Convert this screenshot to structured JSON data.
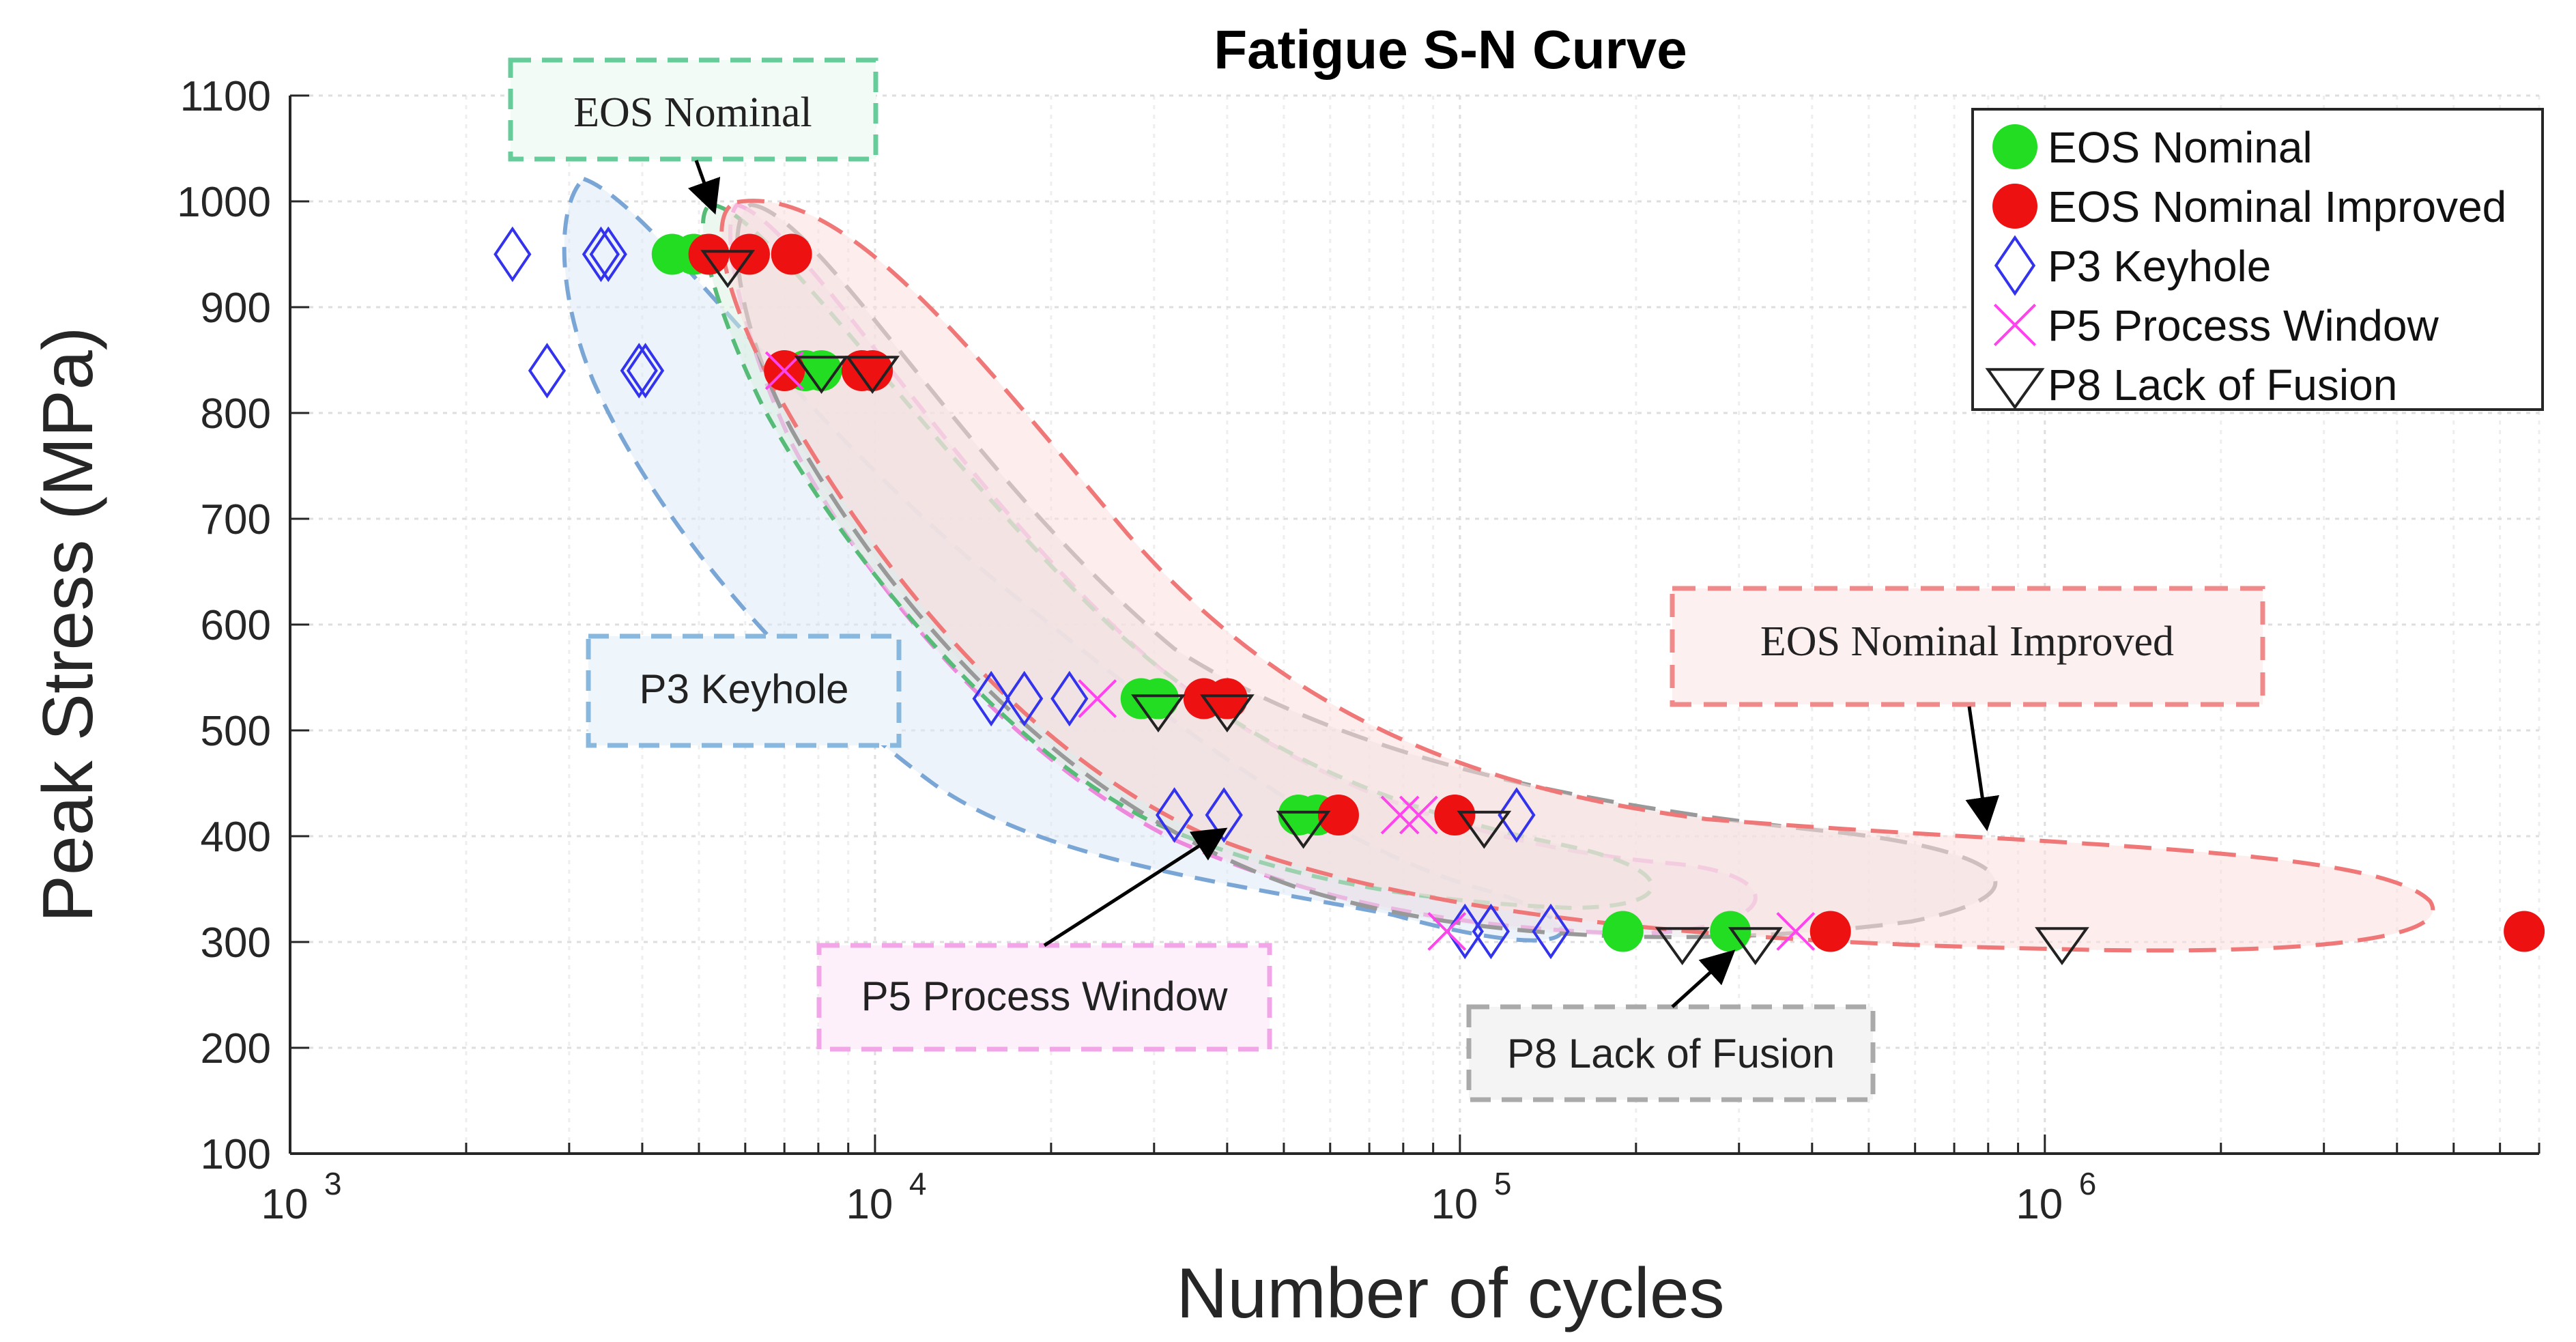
{
  "chart_data": {
    "type": "scatter",
    "title": "Fatigue S-N Curve",
    "xlabel": "Number of cycles",
    "ylabel": "Peak Stress (MPa)",
    "x_scale": "log",
    "xlim": [
      1000,
      7000000
    ],
    "ylim": [
      100,
      1100
    ],
    "x_ticks": [
      {
        "value": 1000,
        "base": "10",
        "exp": "3"
      },
      {
        "value": 10000,
        "base": "10",
        "exp": "4"
      },
      {
        "value": 100000,
        "base": "10",
        "exp": "5"
      },
      {
        "value": 1000000,
        "base": "10",
        "exp": "6"
      }
    ],
    "y_ticks": [
      100,
      200,
      300,
      400,
      500,
      600,
      700,
      800,
      900,
      1000,
      1100
    ],
    "y_tick_labels": [
      "100",
      "200",
      "300",
      "400",
      "500",
      "600",
      "700",
      "800",
      "900",
      "1000",
      "1100"
    ],
    "grid": true,
    "legend_position": "top-right",
    "series": [
      {
        "name": "EOS Nominal",
        "marker": "circle-filled",
        "color": "#22dd22",
        "points": [
          [
            4500,
            950
          ],
          [
            4900,
            950
          ],
          [
            7600,
            840
          ],
          [
            8100,
            840
          ],
          [
            28500,
            530
          ],
          [
            30500,
            530
          ],
          [
            53000,
            420
          ],
          [
            57000,
            420
          ],
          [
            190000,
            310
          ],
          [
            290000,
            310
          ]
        ]
      },
      {
        "name": "EOS Nominal Improved",
        "marker": "circle-filled",
        "color": "#ee1111",
        "points": [
          [
            5200,
            950
          ],
          [
            6100,
            950
          ],
          [
            7200,
            950
          ],
          [
            7000,
            840
          ],
          [
            9500,
            840
          ],
          [
            9900,
            840
          ],
          [
            36500,
            530
          ],
          [
            40000,
            530
          ],
          [
            62000,
            420
          ],
          [
            98000,
            420
          ],
          [
            430000,
            310
          ],
          [
            6600000,
            310
          ]
        ]
      },
      {
        "name": "P3 Keyhole",
        "marker": "diamond-open",
        "color": "#3333ee",
        "points": [
          [
            2400,
            950
          ],
          [
            3400,
            950
          ],
          [
            3500,
            950
          ],
          [
            2750,
            840
          ],
          [
            3950,
            840
          ],
          [
            4050,
            840
          ],
          [
            15800,
            530
          ],
          [
            18000,
            530
          ],
          [
            21500,
            530
          ],
          [
            32500,
            420
          ],
          [
            39500,
            420
          ],
          [
            102000,
            310
          ],
          [
            113000,
            310
          ],
          [
            143000,
            310
          ],
          [
            125000,
            420
          ]
        ]
      },
      {
        "name": "P5 Process Window",
        "marker": "x",
        "color": "#ff44ee",
        "points": [
          [
            7000,
            840
          ],
          [
            24000,
            530
          ],
          [
            79000,
            420
          ],
          [
            85000,
            420
          ],
          [
            95000,
            310
          ],
          [
            375000,
            310
          ]
        ]
      },
      {
        "name": "P8 Lack of Fusion",
        "marker": "triangle-down-open",
        "color": "#222222",
        "points": [
          [
            5600,
            940
          ],
          [
            8100,
            840
          ],
          [
            9900,
            840
          ],
          [
            30500,
            520
          ],
          [
            40000,
            520
          ],
          [
            54000,
            410
          ],
          [
            110000,
            410
          ],
          [
            240000,
            300
          ],
          [
            320000,
            300
          ],
          [
            1070000,
            300
          ]
        ]
      }
    ],
    "annotations": [
      {
        "text": "EOS Nominal",
        "style": "serif",
        "border": "#66cc99",
        "fill": "#f2fbf5",
        "arrow_to": [
          5400,
          990
        ]
      },
      {
        "text": "P3 Keyhole",
        "style": "sans",
        "border": "#88b8dd",
        "fill": "#eef5fb"
      },
      {
        "text": "EOS Nominal Improved",
        "style": "serif",
        "border": "#f08a8a",
        "fill": "#fdf0f0",
        "arrow_to": [
          820000,
          410
        ]
      },
      {
        "text": "P5 Process Window",
        "style": "sans",
        "border": "#f2a6e8",
        "fill": "#fdf0fb",
        "arrow_to": [
          41000,
          410
        ]
      },
      {
        "text": "P8 Lack of Fusion",
        "style": "sans",
        "border": "#aaaaaa",
        "fill": "#f4f4f4",
        "arrow_to": [
          300000,
          300
        ]
      }
    ],
    "regions": [
      {
        "name": "P3 Keyhole",
        "color": "#7aa6d6",
        "fill": "#dce9f6"
      },
      {
        "name": "P5 Process Window",
        "color": "#ee88dd",
        "fill": "#f6ddf2"
      },
      {
        "name": "EOS Nominal",
        "color": "#55bb77",
        "fill": "#d9efdf"
      },
      {
        "name": "P8 Lack of Fusion",
        "color": "#999999",
        "fill": "#e6e6e6"
      },
      {
        "name": "EOS Nominal Improved",
        "color": "#f07777",
        "fill": "#fbdede"
      }
    ]
  }
}
